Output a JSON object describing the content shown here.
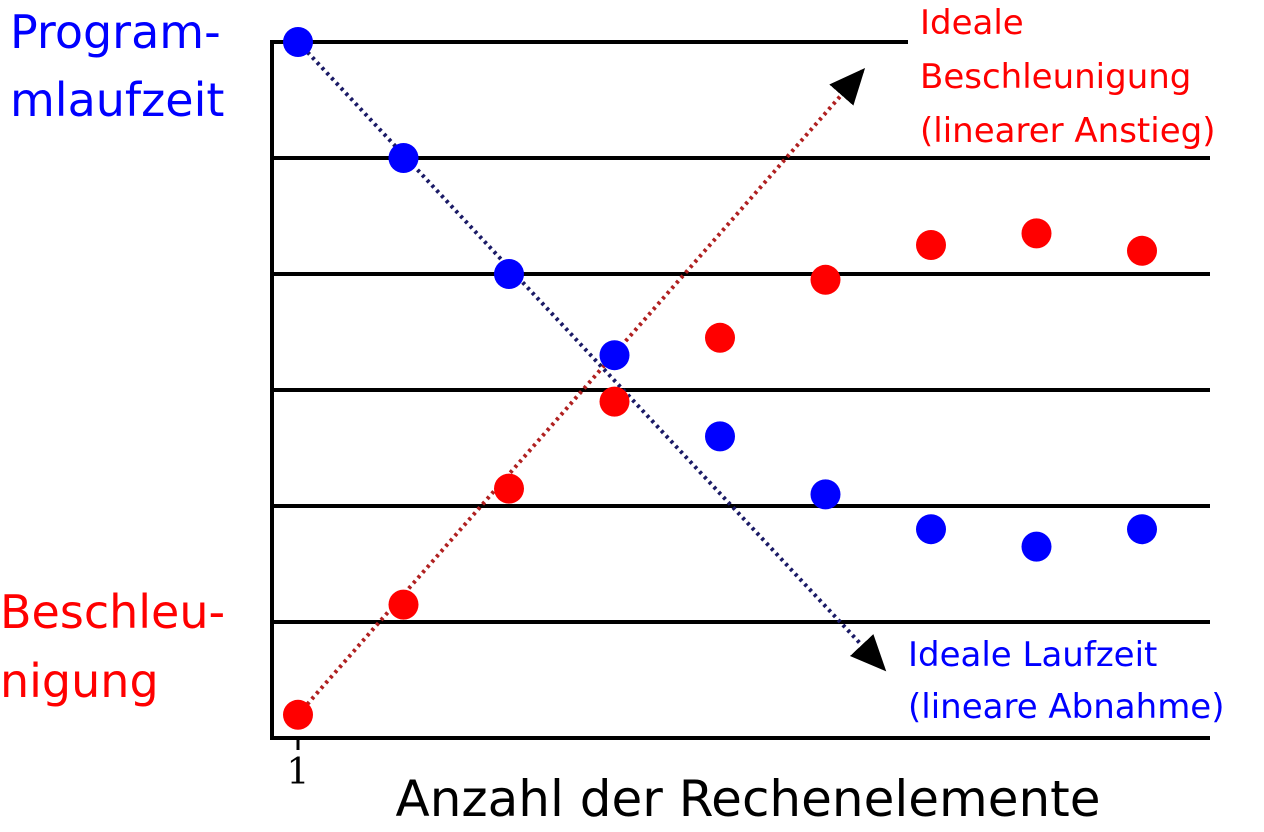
{
  "chart_data": {
    "type": "scatter",
    "title": "",
    "xlabel": "Anzahl der Rechenelemente",
    "ylabel_top": [
      "Program-",
      "mlaufzeit"
    ],
    "ylabel_bottom": [
      "Beschleu-",
      "nigung"
    ],
    "x_tick_labels": [
      {
        "x": 1,
        "label": "1"
      }
    ],
    "xlim": [
      1,
      9
    ],
    "ylim": [
      0,
      6
    ],
    "grid": true,
    "grid_y": [
      0,
      1,
      2,
      3,
      4,
      5,
      6
    ],
    "colors": {
      "runtime": "#0000ff",
      "speedup": "#ff0000",
      "runtime_ideal_line": "#1a1a66",
      "speedup_ideal_line": "#b02020",
      "axis": "#000000"
    },
    "series": [
      {
        "key": "runtime",
        "x": [
          1,
          2,
          3,
          4,
          5,
          6,
          7,
          8,
          9
        ],
        "y": [
          6.0,
          5.0,
          4.0,
          3.3,
          2.6,
          2.1,
          1.8,
          1.65,
          1.8
        ]
      },
      {
        "key": "speedup",
        "x": [
          1,
          2,
          3,
          4,
          5,
          6,
          7,
          8,
          9
        ],
        "y": [
          0.2,
          1.15,
          2.15,
          2.9,
          3.45,
          3.95,
          4.25,
          4.35,
          4.2
        ]
      }
    ],
    "ideal_lines": [
      {
        "key": "speedup_ideal",
        "from": [
          1,
          0.2
        ],
        "to": [
          6.35,
          5.75
        ],
        "label": [
          "Ideale",
          "Beschleunigung",
          "(linearer Anstieg)"
        ]
      },
      {
        "key": "runtime_ideal",
        "from": [
          1,
          6.0
        ],
        "to": [
          6.55,
          0.6
        ],
        "label": [
          "Ideale Laufzeit",
          "(lineare Abnahme)"
        ]
      }
    ]
  }
}
